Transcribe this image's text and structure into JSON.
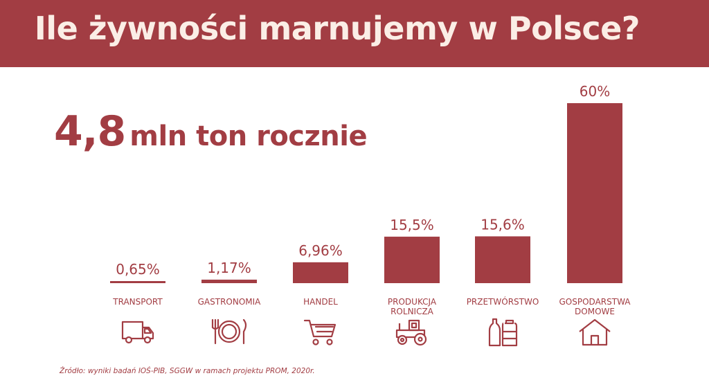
{
  "title": "Ile żywności marnujemy w Polsce?",
  "headline": {
    "value": "4,8",
    "unit": "mln ton rocznie"
  },
  "source": "Źródło: wyniki badań IOŚ-PIB, SGGW w ramach projektu PROM, 2020r.",
  "colors": {
    "accent": "#a23d43",
    "title_text": "#fbeee6",
    "background": "#ffffff"
  },
  "chart_data": {
    "type": "bar",
    "categories": [
      [
        "TRANSPORT"
      ],
      [
        "GASTRONOMIA"
      ],
      [
        "HANDEL"
      ],
      [
        "PRODUKCJA",
        "ROLNICZA"
      ],
      [
        "PRZETWÓRSTWO"
      ],
      [
        "GOSPODARSTWA",
        "DOMOWE"
      ]
    ],
    "values": [
      0.65,
      1.17,
      6.96,
      15.5,
      15.6,
      60
    ],
    "value_labels": [
      "0,65%",
      "1,17%",
      "6,96%",
      "15,5%",
      "15,6%",
      "60%"
    ],
    "icons": [
      "truck-icon",
      "cutlery-plate-icon",
      "shopping-cart-icon",
      "tractor-icon",
      "bottles-icon",
      "house-icon"
    ],
    "ylim": [
      0,
      60
    ],
    "grid": false,
    "xlabel": "",
    "ylabel": ""
  }
}
